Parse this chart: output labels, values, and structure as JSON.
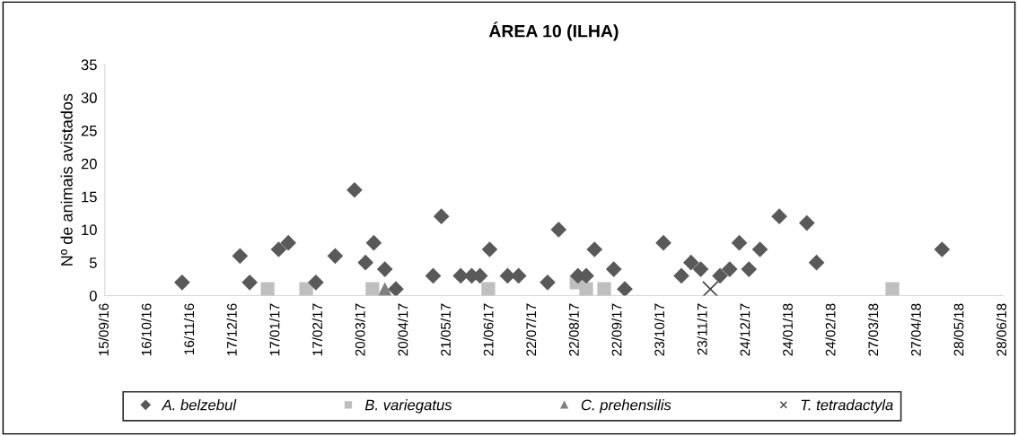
{
  "chart_data": {
    "type": "scatter",
    "title": "ÁREA 10 (ILHA)",
    "ylabel": "Nº de animais avistados",
    "xlim": [
      "2016-09-15",
      "2018-06-28"
    ],
    "xticks": [
      {
        "value": "2016-09-15",
        "label": "15/09/16"
      },
      {
        "value": "2016-10-16",
        "label": "16/10/16"
      },
      {
        "value": "2016-11-16",
        "label": "16/11/16"
      },
      {
        "value": "2016-12-17",
        "label": "17/12/16"
      },
      {
        "value": "2017-01-17",
        "label": "17/01/17"
      },
      {
        "value": "2017-02-17",
        "label": "17/02/17"
      },
      {
        "value": "2017-03-20",
        "label": "20/03/17"
      },
      {
        "value": "2017-04-20",
        "label": "20/04/17"
      },
      {
        "value": "2017-05-21",
        "label": "21/05/17"
      },
      {
        "value": "2017-06-21",
        "label": "21/06/17"
      },
      {
        "value": "2017-07-22",
        "label": "22/07/17"
      },
      {
        "value": "2017-08-22",
        "label": "22/08/17"
      },
      {
        "value": "2017-09-22",
        "label": "22/09/17"
      },
      {
        "value": "2017-10-23",
        "label": "23/10/17"
      },
      {
        "value": "2017-11-23",
        "label": "23/11/17"
      },
      {
        "value": "2017-12-24",
        "label": "24/12/17"
      },
      {
        "value": "2018-01-24",
        "label": "24/01/18"
      },
      {
        "value": "2018-02-24",
        "label": "24/02/18"
      },
      {
        "value": "2018-03-27",
        "label": "27/03/18"
      },
      {
        "value": "2018-04-27",
        "label": "27/04/18"
      },
      {
        "value": "2018-05-28",
        "label": "28/05/18"
      },
      {
        "value": "2018-06-28",
        "label": "28/06/18"
      }
    ],
    "ylim": [
      0,
      35
    ],
    "yticks": [
      0,
      5,
      10,
      15,
      20,
      25,
      30,
      35
    ],
    "grid": false,
    "legend": "bottom",
    "series": [
      {
        "name": "A. belzebul",
        "color": "#595959",
        "marker": "diamond",
        "x": [
          "2016-11-10",
          "2016-12-22",
          "2016-12-29",
          "2017-01-19",
          "2017-01-26",
          "2017-02-15",
          "2017-03-01",
          "2017-03-15",
          "2017-03-23",
          "2017-03-29",
          "2017-04-06",
          "2017-04-14",
          "2017-05-11",
          "2017-05-17",
          "2017-05-31",
          "2017-06-08",
          "2017-06-14",
          "2017-06-21",
          "2017-07-04",
          "2017-07-12",
          "2017-08-02",
          "2017-08-10",
          "2017-08-24",
          "2017-08-30",
          "2017-09-05",
          "2017-09-19",
          "2017-09-27",
          "2017-10-25",
          "2017-11-07",
          "2017-11-14",
          "2017-11-21",
          "2017-12-05",
          "2017-12-12",
          "2017-12-19",
          "2017-12-26",
          "2018-01-03",
          "2018-01-17",
          "2018-02-06",
          "2018-02-13",
          "2018-05-15"
        ],
        "values": [
          2,
          6,
          2,
          7,
          8,
          2,
          6,
          16,
          5,
          8,
          4,
          1,
          3,
          12,
          3,
          3,
          3,
          7,
          3,
          3,
          2,
          10,
          3,
          3,
          7,
          4,
          1,
          8,
          3,
          5,
          4,
          3,
          4,
          8,
          4,
          7,
          12,
          11,
          5,
          7
        ]
      },
      {
        "name": "B. variegatus",
        "color": "#bfbfbf",
        "marker": "square",
        "x": [
          "2017-01-11",
          "2017-02-08",
          "2017-03-28",
          "2017-06-20",
          "2017-08-23",
          "2017-08-30",
          "2017-09-12",
          "2018-04-09"
        ],
        "values": [
          1,
          1,
          1,
          1,
          2,
          1,
          1,
          1
        ]
      },
      {
        "name": "C. prehensilis",
        "color": "#808080",
        "marker": "triangle",
        "x": [
          "2017-04-06"
        ],
        "values": [
          1
        ]
      },
      {
        "name": "T. tetradactyla",
        "color": "#404040",
        "marker": "cross",
        "x": [
          "2017-11-28"
        ],
        "values": [
          1
        ]
      }
    ]
  }
}
